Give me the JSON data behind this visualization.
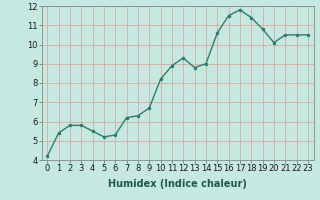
{
  "x": [
    0,
    1,
    2,
    3,
    4,
    5,
    6,
    7,
    8,
    9,
    10,
    11,
    12,
    13,
    14,
    15,
    16,
    17,
    18,
    19,
    20,
    21,
    22,
    23
  ],
  "y": [
    4.2,
    5.4,
    5.8,
    5.8,
    5.5,
    5.2,
    5.3,
    6.2,
    6.3,
    6.7,
    8.2,
    8.9,
    9.3,
    8.8,
    9.0,
    10.6,
    11.5,
    11.8,
    11.4,
    10.8,
    10.1,
    10.5,
    10.5,
    10.5
  ],
  "xlabel": "Humidex (Indice chaleur)",
  "ylim": [
    4,
    12
  ],
  "xlim": [
    -0.5,
    23.5
  ],
  "yticks": [
    4,
    5,
    6,
    7,
    8,
    9,
    10,
    11,
    12
  ],
  "xticks": [
    0,
    1,
    2,
    3,
    4,
    5,
    6,
    7,
    8,
    9,
    10,
    11,
    12,
    13,
    14,
    15,
    16,
    17,
    18,
    19,
    20,
    21,
    22,
    23
  ],
  "line_color": "#2e7d6e",
  "marker": ".",
  "marker_size": 3,
  "bg_color": "#c5e8e0",
  "grid_color": "#daaaa0",
  "axis_bg": "#c5e8e0",
  "xlabel_fontsize": 7,
  "tick_fontsize": 6,
  "line_width": 1.0
}
